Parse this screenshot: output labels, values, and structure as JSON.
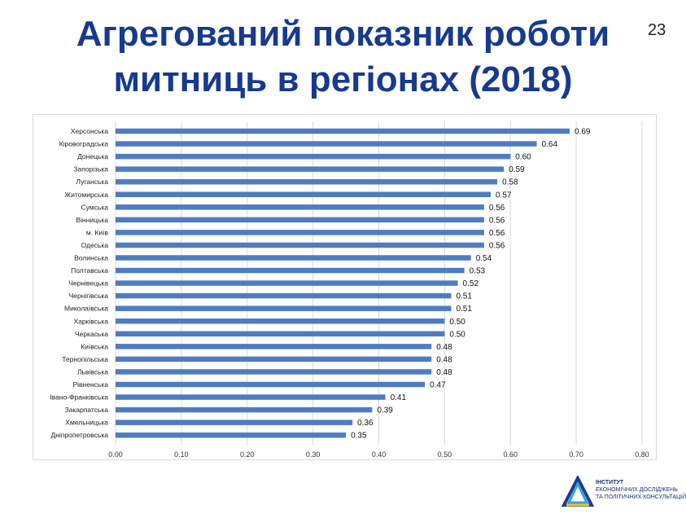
{
  "slide": {
    "title_line1": "Агрегований показник роботи",
    "title_line2": "митниць в регіонах (2018)",
    "page_number": "23"
  },
  "logo": {
    "line1": "ІНСТИТУТ",
    "line2": "ЕКОНОМІЧНИХ ДОСЛІДЖЕНЬ",
    "line3": "ТА ПОЛІТИЧНИХ КОНСУЛЬТАЦІЙ",
    "colors": [
      "#1f3a93",
      "#2aa7df",
      "#f5c518"
    ]
  },
  "chart_data": {
    "type": "bar",
    "orientation": "horizontal",
    "title": "",
    "xlabel": "",
    "ylabel": "",
    "xlim": [
      0,
      0.8
    ],
    "x_ticks": [
      "0.00",
      "0.10",
      "0.20",
      "0.30",
      "0.40",
      "0.50",
      "0.60",
      "0.70",
      "0.80"
    ],
    "grid": "vertical",
    "bar_color": "#4f7cc1",
    "categories": [
      "Херсонська",
      "Кіровоградська",
      "Донецька",
      "Запорізька",
      "Луганська",
      "Житомирська",
      "Сумська",
      "Вінницька",
      "м. Київ",
      "Одеська",
      "Волинська",
      "Полтавська",
      "Чернівецька",
      "Чернігівська",
      "Миколаївська",
      "Харківська",
      "Черкаська",
      "Київська",
      "Тернопільська",
      "Львівська",
      "Рівненська",
      "Івано-Франківська",
      "Закарпатська",
      "Хмельницька",
      "Дніпропетровська"
    ],
    "values": [
      0.69,
      0.64,
      0.6,
      0.59,
      0.58,
      0.57,
      0.56,
      0.56,
      0.56,
      0.56,
      0.54,
      0.53,
      0.52,
      0.51,
      0.51,
      0.5,
      0.5,
      0.48,
      0.48,
      0.48,
      0.47,
      0.41,
      0.39,
      0.36,
      0.35
    ],
    "value_labels": [
      "0.69",
      "0.64",
      "0.60",
      "0.59",
      "0.58",
      "0.57",
      "0.56",
      "0.56",
      "0.56",
      "0.56",
      "0.54",
      "0.53",
      "0.52",
      "0.51",
      "0.51",
      "0.50",
      "0.50",
      "0.48",
      "0.48",
      "0.48",
      "0.47",
      "0.41",
      "0.39",
      "0.36",
      "0.35"
    ]
  }
}
